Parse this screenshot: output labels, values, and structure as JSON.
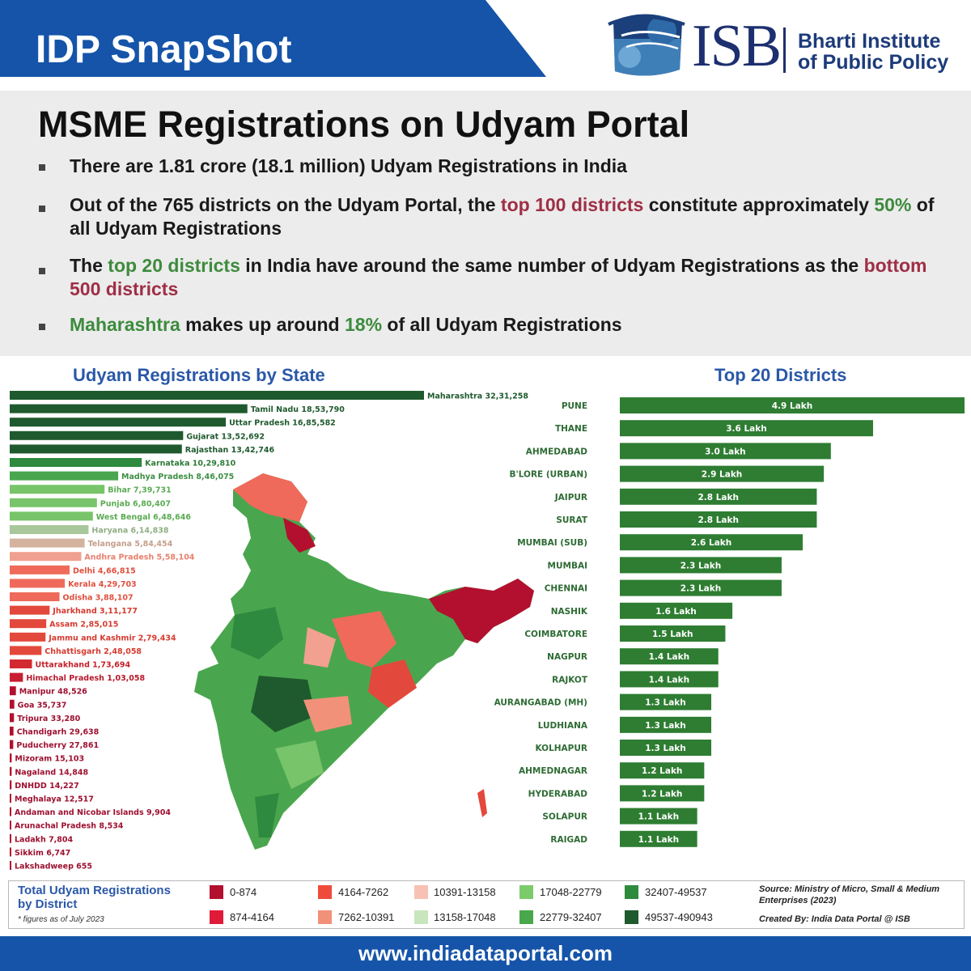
{
  "header": {
    "banner_title": "IDP SnapShot",
    "logo_text": "ISB",
    "logo_subtitle_line1": "Bharti Institute",
    "logo_subtitle_line2": "of Public Policy",
    "banner_color": "#1554a9"
  },
  "summary": {
    "title": "MSME Registrations on Udyam Portal",
    "bullets": [
      {
        "segments": [
          {
            "text": "There are 1.81 crore (18.1 million) Udyam Registrations in India",
            "style": "plain"
          }
        ]
      },
      {
        "segments": [
          {
            "text": "Out of the 765 districts on the Udyam Portal, the ",
            "style": "plain"
          },
          {
            "text": "top 100 districts",
            "style": "red"
          },
          {
            "text": " constitute approximately ",
            "style": "plain"
          },
          {
            "text": "50%",
            "style": "green"
          },
          {
            "text": " of all Udyam Registrations",
            "style": "plain"
          }
        ]
      },
      {
        "segments": [
          {
            "text": "The ",
            "style": "plain"
          },
          {
            "text": "top 20 districts",
            "style": "green"
          },
          {
            "text": " in India have around the same number of Udyam Registrations as the ",
            "style": "plain"
          },
          {
            "text": "bottom 500 districts",
            "style": "red"
          }
        ]
      },
      {
        "segments": [
          {
            "text": "Maharashtra",
            "style": "green"
          },
          {
            "text": " makes up around ",
            "style": "plain"
          },
          {
            "text": "18%",
            "style": "green"
          },
          {
            "text": " of all Udyam Registrations",
            "style": "plain"
          }
        ]
      }
    ]
  },
  "chart_data": [
    {
      "type": "bar",
      "orientation": "horizontal",
      "title": "Udyam Registrations by State",
      "categories": [
        "Maharashtra",
        "Tamil Nadu",
        "Uttar Pradesh",
        "Gujarat",
        "Rajasthan",
        "Karnataka",
        "Madhya Pradesh",
        "Bihar",
        "Punjab",
        "West Bengal",
        "Haryana",
        "Telangana",
        "Andhra Pradesh",
        "Delhi",
        "Kerala",
        "Odisha",
        "Jharkhand",
        "Assam",
        "Jammu and Kashmir",
        "Chhattisgarh",
        "Uttarakhand",
        "Himachal Pradesh",
        "Manipur",
        "Goa",
        "Tripura",
        "Chandigarh",
        "Puducherry",
        "Mizoram",
        "Nagaland",
        "DNHDD",
        "Meghalaya",
        "Andaman and Nicobar Islands",
        "Arunachal Pradesh",
        "Ladakh",
        "Sikkim",
        "Lakshadweep"
      ],
      "values": [
        3231258,
        1853790,
        1685582,
        1352692,
        1342746,
        1029810,
        846075,
        739731,
        680407,
        648646,
        614838,
        584454,
        558104,
        466815,
        429703,
        388107,
        311177,
        285015,
        279434,
        248058,
        173694,
        103058,
        48526,
        35737,
        33280,
        29638,
        27861,
        15103,
        14848,
        14227,
        12517,
        9904,
        8534,
        7804,
        6747,
        655
      ],
      "labels": [
        "Maharashtra 32,31,258",
        "Tamil Nadu 18,53,790",
        "Uttar Pradesh 16,85,582",
        "Gujarat 13,52,692",
        "Rajasthan 13,42,746",
        "Karnataka 10,29,810",
        "Madhya Pradesh 8,46,075",
        "Bihar 7,39,731",
        "Punjab 6,80,407",
        "West Bengal 6,48,646",
        "Haryana 6,14,838",
        "Telangana 5,84,454",
        "Andhra Pradesh 5,58,104",
        "Delhi 4,66,815",
        "Kerala 4,29,703",
        "Odisha 3,88,107",
        "Jharkhand 3,11,177",
        "Assam 2,85,015",
        "Jammu and Kashmir 2,79,434",
        "Chhattisgarh 2,48,058",
        "Uttarakhand 1,73,694",
        "Himachal Pradesh 1,03,058",
        "Manipur 48,526",
        "Goa 35,737",
        "Tripura 33,280",
        "Chandigarh 29,638",
        "Puducherry 27,861",
        "Mizoram 15,103",
        "Nagaland 14,848",
        "DNHDD 14,227",
        "Meghalaya 12,517",
        "Andaman and Nicobar Islands 9,904",
        "Arunachal Pradesh 8,534",
        "Ladakh 7,804",
        "Sikkim 6,747",
        "Lakshadweep 655"
      ],
      "colors": [
        "#1f5a2e",
        "#1f5a2e",
        "#1f5a2e",
        "#1f5a2e",
        "#1f5a2e",
        "#2e8a3e",
        "#4aa64e",
        "#78c46a",
        "#78c46a",
        "#78c46a",
        "#a8c79b",
        "#d4b39e",
        "#f0a090",
        "#ef6a5a",
        "#ef6a5a",
        "#ef6a5a",
        "#e3483c",
        "#e3483c",
        "#e3483c",
        "#e3483c",
        "#d32a30",
        "#c81e32",
        "#b2102e",
        "#b2102e",
        "#b2102e",
        "#b2102e",
        "#b2102e",
        "#b2102e",
        "#b2102e",
        "#b2102e",
        "#b2102e",
        "#b2102e",
        "#b2102e",
        "#b2102e",
        "#b2102e",
        "#b2102e"
      ],
      "label_colors": [
        "#1f5a2e",
        "#1f5a2e",
        "#1f5a2e",
        "#1f5a2e",
        "#1f5a2e",
        "#2e7a38",
        "#3d8f44",
        "#5aab52",
        "#5aab52",
        "#5aab52",
        "#8fae82",
        "#c4a08a",
        "#e8806d",
        "#e0503f",
        "#e0503f",
        "#e0503f",
        "#d63a30",
        "#d63a30",
        "#d63a30",
        "#d63a30",
        "#c4202a",
        "#b8182c",
        "#9e1030",
        "#9e1030",
        "#9e1030",
        "#9e1030",
        "#9e1030",
        "#9e1030",
        "#9e1030",
        "#9e1030",
        "#9e1030",
        "#9e1030",
        "#9e1030",
        "#9e1030",
        "#9e1030",
        "#9e1030"
      ]
    },
    {
      "type": "bar",
      "orientation": "horizontal",
      "title": "Top 20 Districts",
      "categories": [
        "PUNE",
        "THANE",
        "AHMEDABAD",
        "B'LORE (URBAN)",
        "JAIPUR",
        "SURAT",
        "MUMBAI (SUB)",
        "MUMBAI",
        "CHENNAI",
        "NASHIK",
        "COIMBATORE",
        "NAGPUR",
        "RAJKOT",
        "AURANGABAD (MH)",
        "LUDHIANA",
        "KOLHAPUR",
        "AHMEDNAGAR",
        "HYDERABAD",
        "SOLAPUR",
        "RAIGAD"
      ],
      "values": [
        4.9,
        3.6,
        3.0,
        2.9,
        2.8,
        2.8,
        2.6,
        2.3,
        2.3,
        1.6,
        1.5,
        1.4,
        1.4,
        1.3,
        1.3,
        1.3,
        1.2,
        1.2,
        1.1,
        1.1
      ],
      "unit": "Lakh",
      "labels": [
        "4.9 Lakh",
        "3.6 Lakh",
        "3.0 Lakh",
        "2.9 Lakh",
        "2.8 Lakh",
        "2.8 Lakh",
        "2.6 Lakh",
        "2.3 Lakh",
        "2.3 Lakh",
        "1.6 Lakh",
        "1.5 Lakh",
        "1.4 Lakh",
        "1.4 Lakh",
        "1.3 Lakh",
        "1.3 Lakh",
        "1.3 Lakh",
        "1.2 Lakh",
        "1.2 Lakh",
        "1.1 Lakh",
        "1.1 Lakh"
      ],
      "bar_color": "#2e7d32"
    }
  ],
  "legend": {
    "title": "Total Udyam Registrations by District",
    "note": "* figures as of July 2023",
    "items": [
      {
        "range": "0-874",
        "color": "#b2102e"
      },
      {
        "range": "874-4164",
        "color": "#e01b3a"
      },
      {
        "range": "4164-7262",
        "color": "#ef4b3c"
      },
      {
        "range": "7262-10391",
        "color": "#f2917a"
      },
      {
        "range": "10391-13158",
        "color": "#f7c2b5"
      },
      {
        "range": "13158-17048",
        "color": "#c8e6be"
      },
      {
        "range": "17048-22779",
        "color": "#7ccb6b"
      },
      {
        "range": "22779-32407",
        "color": "#49a84b"
      },
      {
        "range": "32407-49537",
        "color": "#2e8b3e"
      },
      {
        "range": "49537-490943",
        "color": "#1f5a2e"
      }
    ]
  },
  "source": {
    "text": "Source: Ministry of Micro, Small & Medium Enterprises (2023)",
    "credit": "Created By: India Data Portal @ ISB"
  },
  "footer": {
    "url": "www.indiadataportal.com"
  }
}
